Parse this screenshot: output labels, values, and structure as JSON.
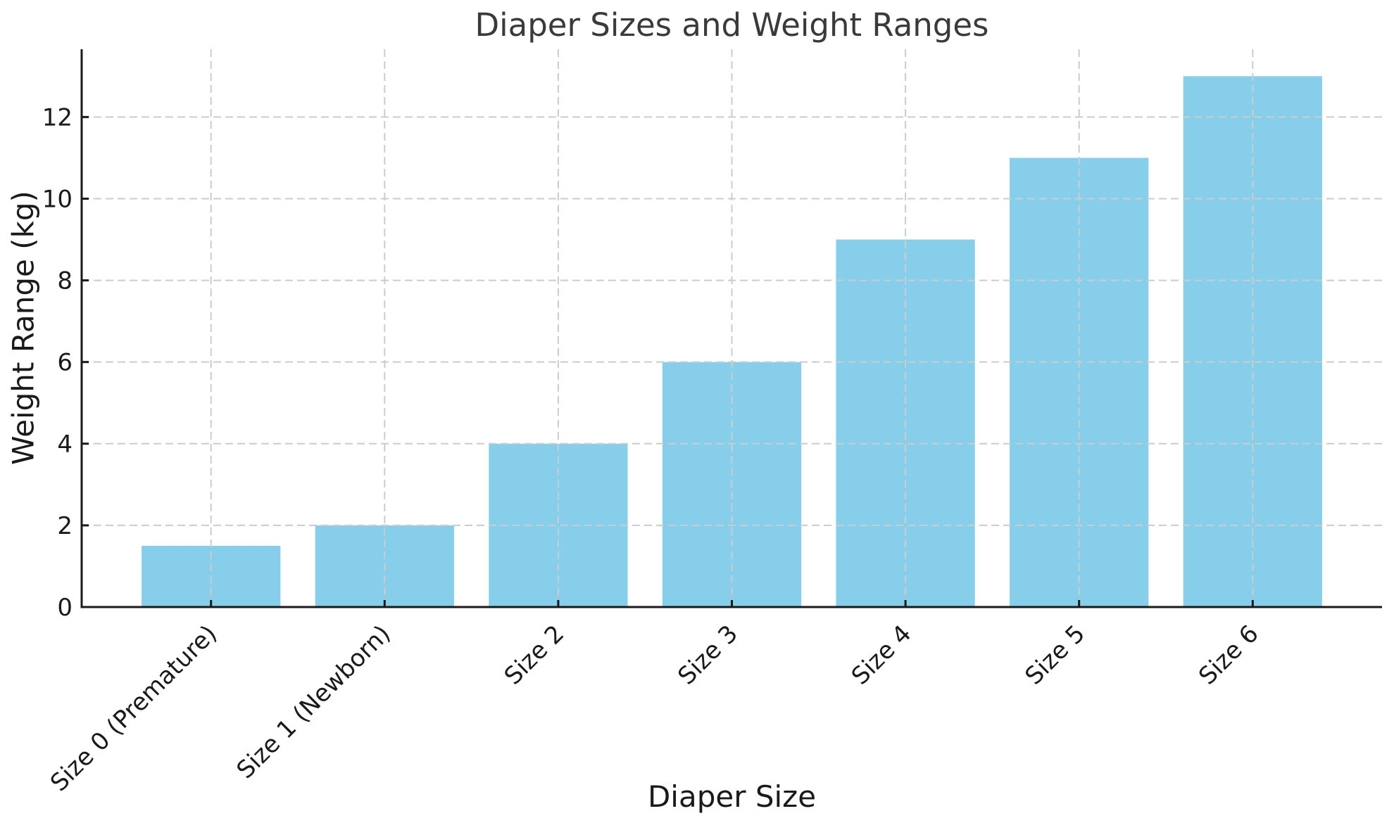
{
  "chart_data": {
    "type": "bar",
    "title": "Diaper Sizes and Weight Ranges",
    "xlabel": "Diaper Size",
    "ylabel": "Weight Range (kg)",
    "categories": [
      "Size 0 (Premature)",
      "Size 1 (Newborn)",
      "Size 2",
      "Size 3",
      "Size 4",
      "Size 5",
      "Size 6"
    ],
    "values": [
      1.5,
      2,
      4,
      6,
      9,
      11,
      13
    ],
    "yticks": [
      0,
      2,
      4,
      6,
      8,
      10,
      12
    ],
    "ylim": [
      0,
      13.66
    ],
    "xlim": [
      -0.745,
      6.745
    ],
    "bar_width_ratio": 0.8,
    "grid": true,
    "grid_style": "dashed",
    "grid_over_bars": true,
    "legend_position": "none",
    "colors": {
      "bar": "#87CEEB",
      "grid": "#cccccc",
      "spine": "#1a1a1a",
      "tick_text": "#1a1a1a",
      "label_text": "#1a1a1a",
      "title_text": "#3a3a3a",
      "background": "#ffffff"
    }
  }
}
